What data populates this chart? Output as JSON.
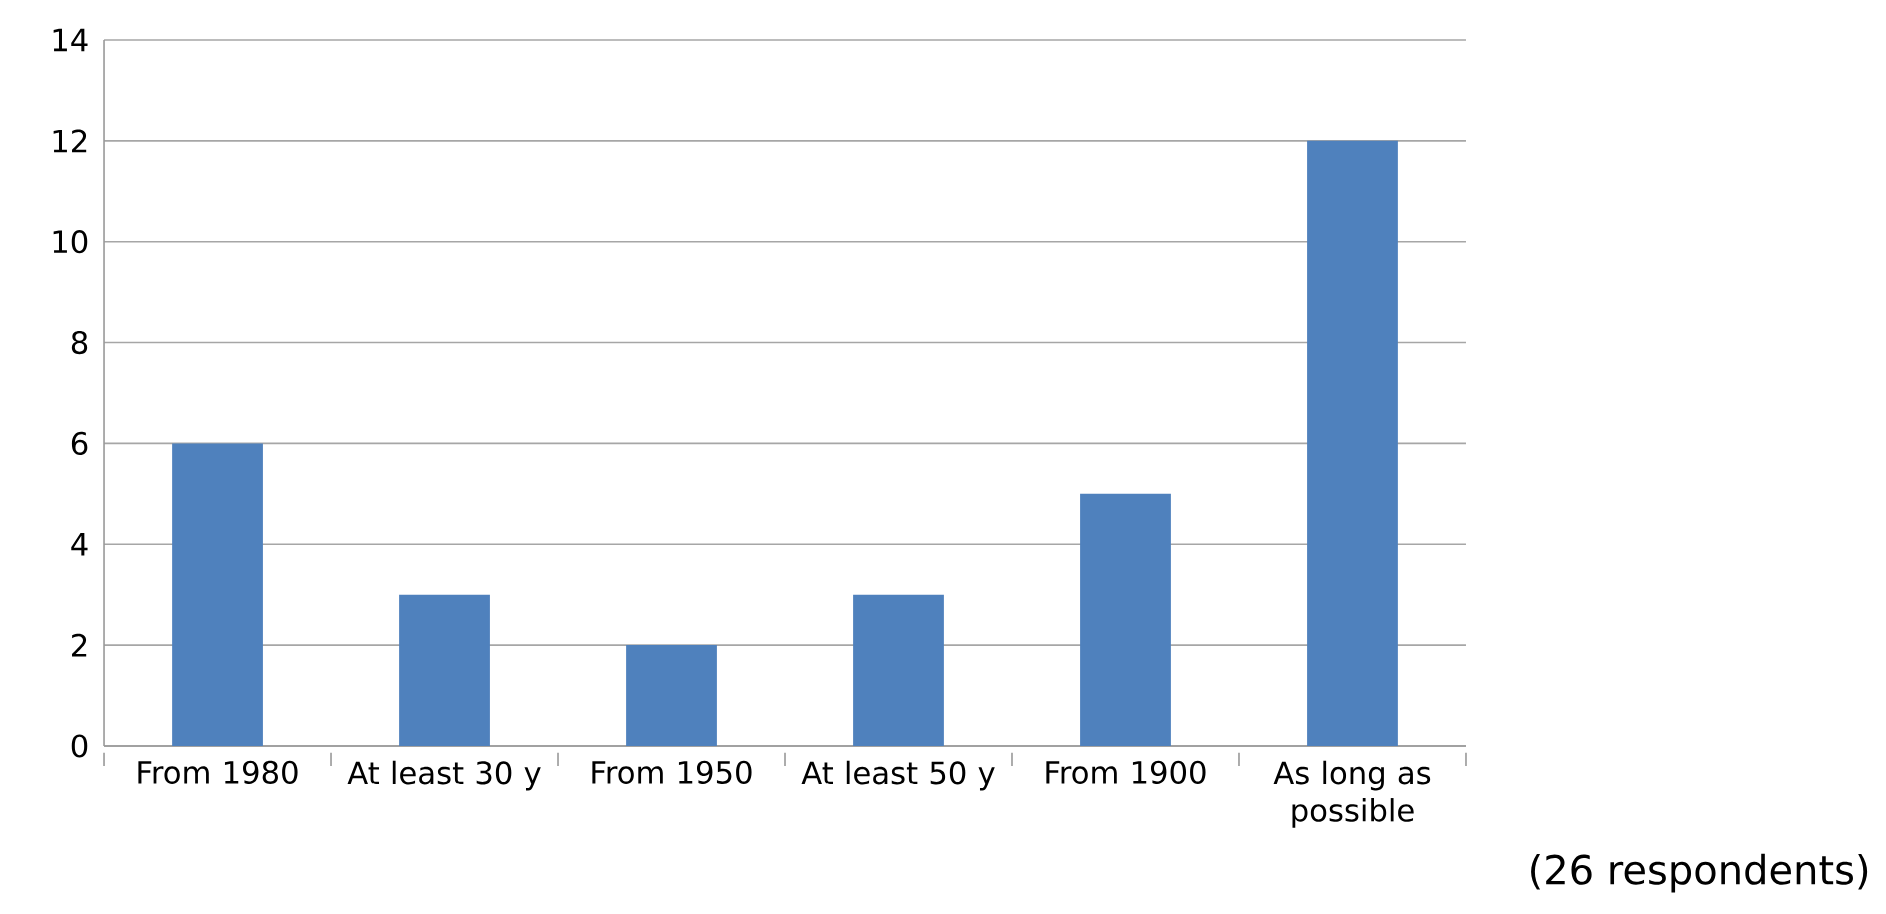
{
  "chart_data": {
    "type": "bar",
    "categories": [
      "From 1980",
      "At least 30 y",
      "From 1950",
      "At least 50 y",
      "From 1900",
      "As long as possible"
    ],
    "values": [
      6,
      3,
      2,
      3,
      5,
      12
    ],
    "color": "#4f81bd",
    "ylim": [
      0,
      14
    ],
    "yticks": [
      0,
      2,
      4,
      6,
      8,
      10,
      12,
      14
    ],
    "grid": "y",
    "annotations": [
      "(26 respondents)"
    ]
  }
}
